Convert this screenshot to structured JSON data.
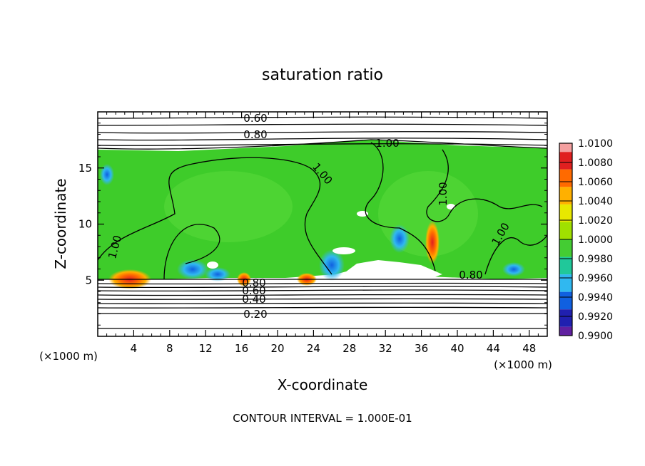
{
  "chart_data": {
    "type": "heatmap",
    "title": "saturation ratio",
    "xlabel": "X-coordinate",
    "ylabel": "Z-coordinate",
    "x_unit": "(×1000 m)",
    "z_unit": "(×1000 m)",
    "xlim": [
      0,
      50
    ],
    "ylim": [
      0,
      20
    ],
    "x_ticks": [
      "4",
      "8",
      "12",
      "16",
      "20",
      "24",
      "28",
      "32",
      "36",
      "40",
      "44",
      "48"
    ],
    "y_ticks": [
      "5",
      "10",
      "15"
    ],
    "footer": "CONTOUR INTERVAL = 1.000E-01",
    "colorbar": {
      "labels": [
        "1.0100",
        "1.0080",
        "1.0060",
        "1.0040",
        "1.0020",
        "1.0000",
        "0.9980",
        "0.9960",
        "0.9940",
        "0.9920",
        "0.9900"
      ],
      "colors": [
        "#f4a0a0",
        "#e02020",
        "#ff6a00",
        "#ffb000",
        "#e8e800",
        "#a0e000",
        "#44cc33",
        "#20c89a",
        "#30b8f0",
        "#1060e0",
        "#2020b0",
        "#6020a0"
      ]
    },
    "contour_labels": [
      "0.60",
      "0.80",
      "1.00",
      "1.00",
      "1.00",
      "1.00",
      "1.00",
      "0.80",
      "0.80",
      "0.60",
      "0.40",
      "0.20"
    ],
    "grid": false,
    "legend": "right"
  }
}
